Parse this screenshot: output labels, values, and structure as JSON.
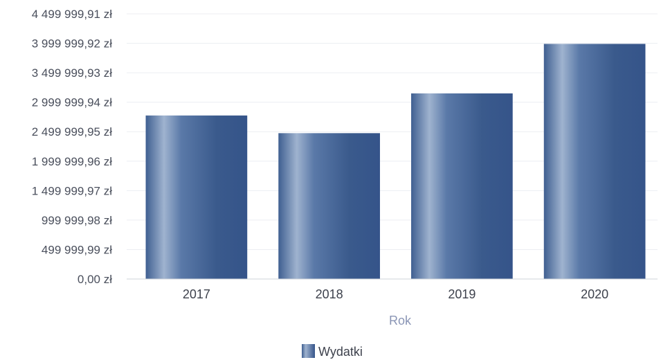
{
  "chart_data": {
    "type": "bar",
    "categories": [
      "2017",
      "2018",
      "2019",
      "2020"
    ],
    "series": [
      {
        "name": "Wydatki",
        "values": [
          2775000,
          2475000,
          3150000,
          3990000
        ]
      }
    ],
    "xlabel": "Rok",
    "ylabel": "",
    "ylim": [
      0,
      4499999.91
    ],
    "yticks": [
      "0,00 zł",
      "499 999,99 zł",
      "999 999,98 zł",
      "1 499 999,97 zł",
      "1 999 999,96 zł",
      "2 499 999,95 zł",
      "2 999 999,94 zł",
      "3 499 999,93 zł",
      "3 999 999,92 zł",
      "4 499 999,91 zł"
    ],
    "grid": true,
    "legend_position": "bottom",
    "bar_color": "#4a6a9c"
  }
}
